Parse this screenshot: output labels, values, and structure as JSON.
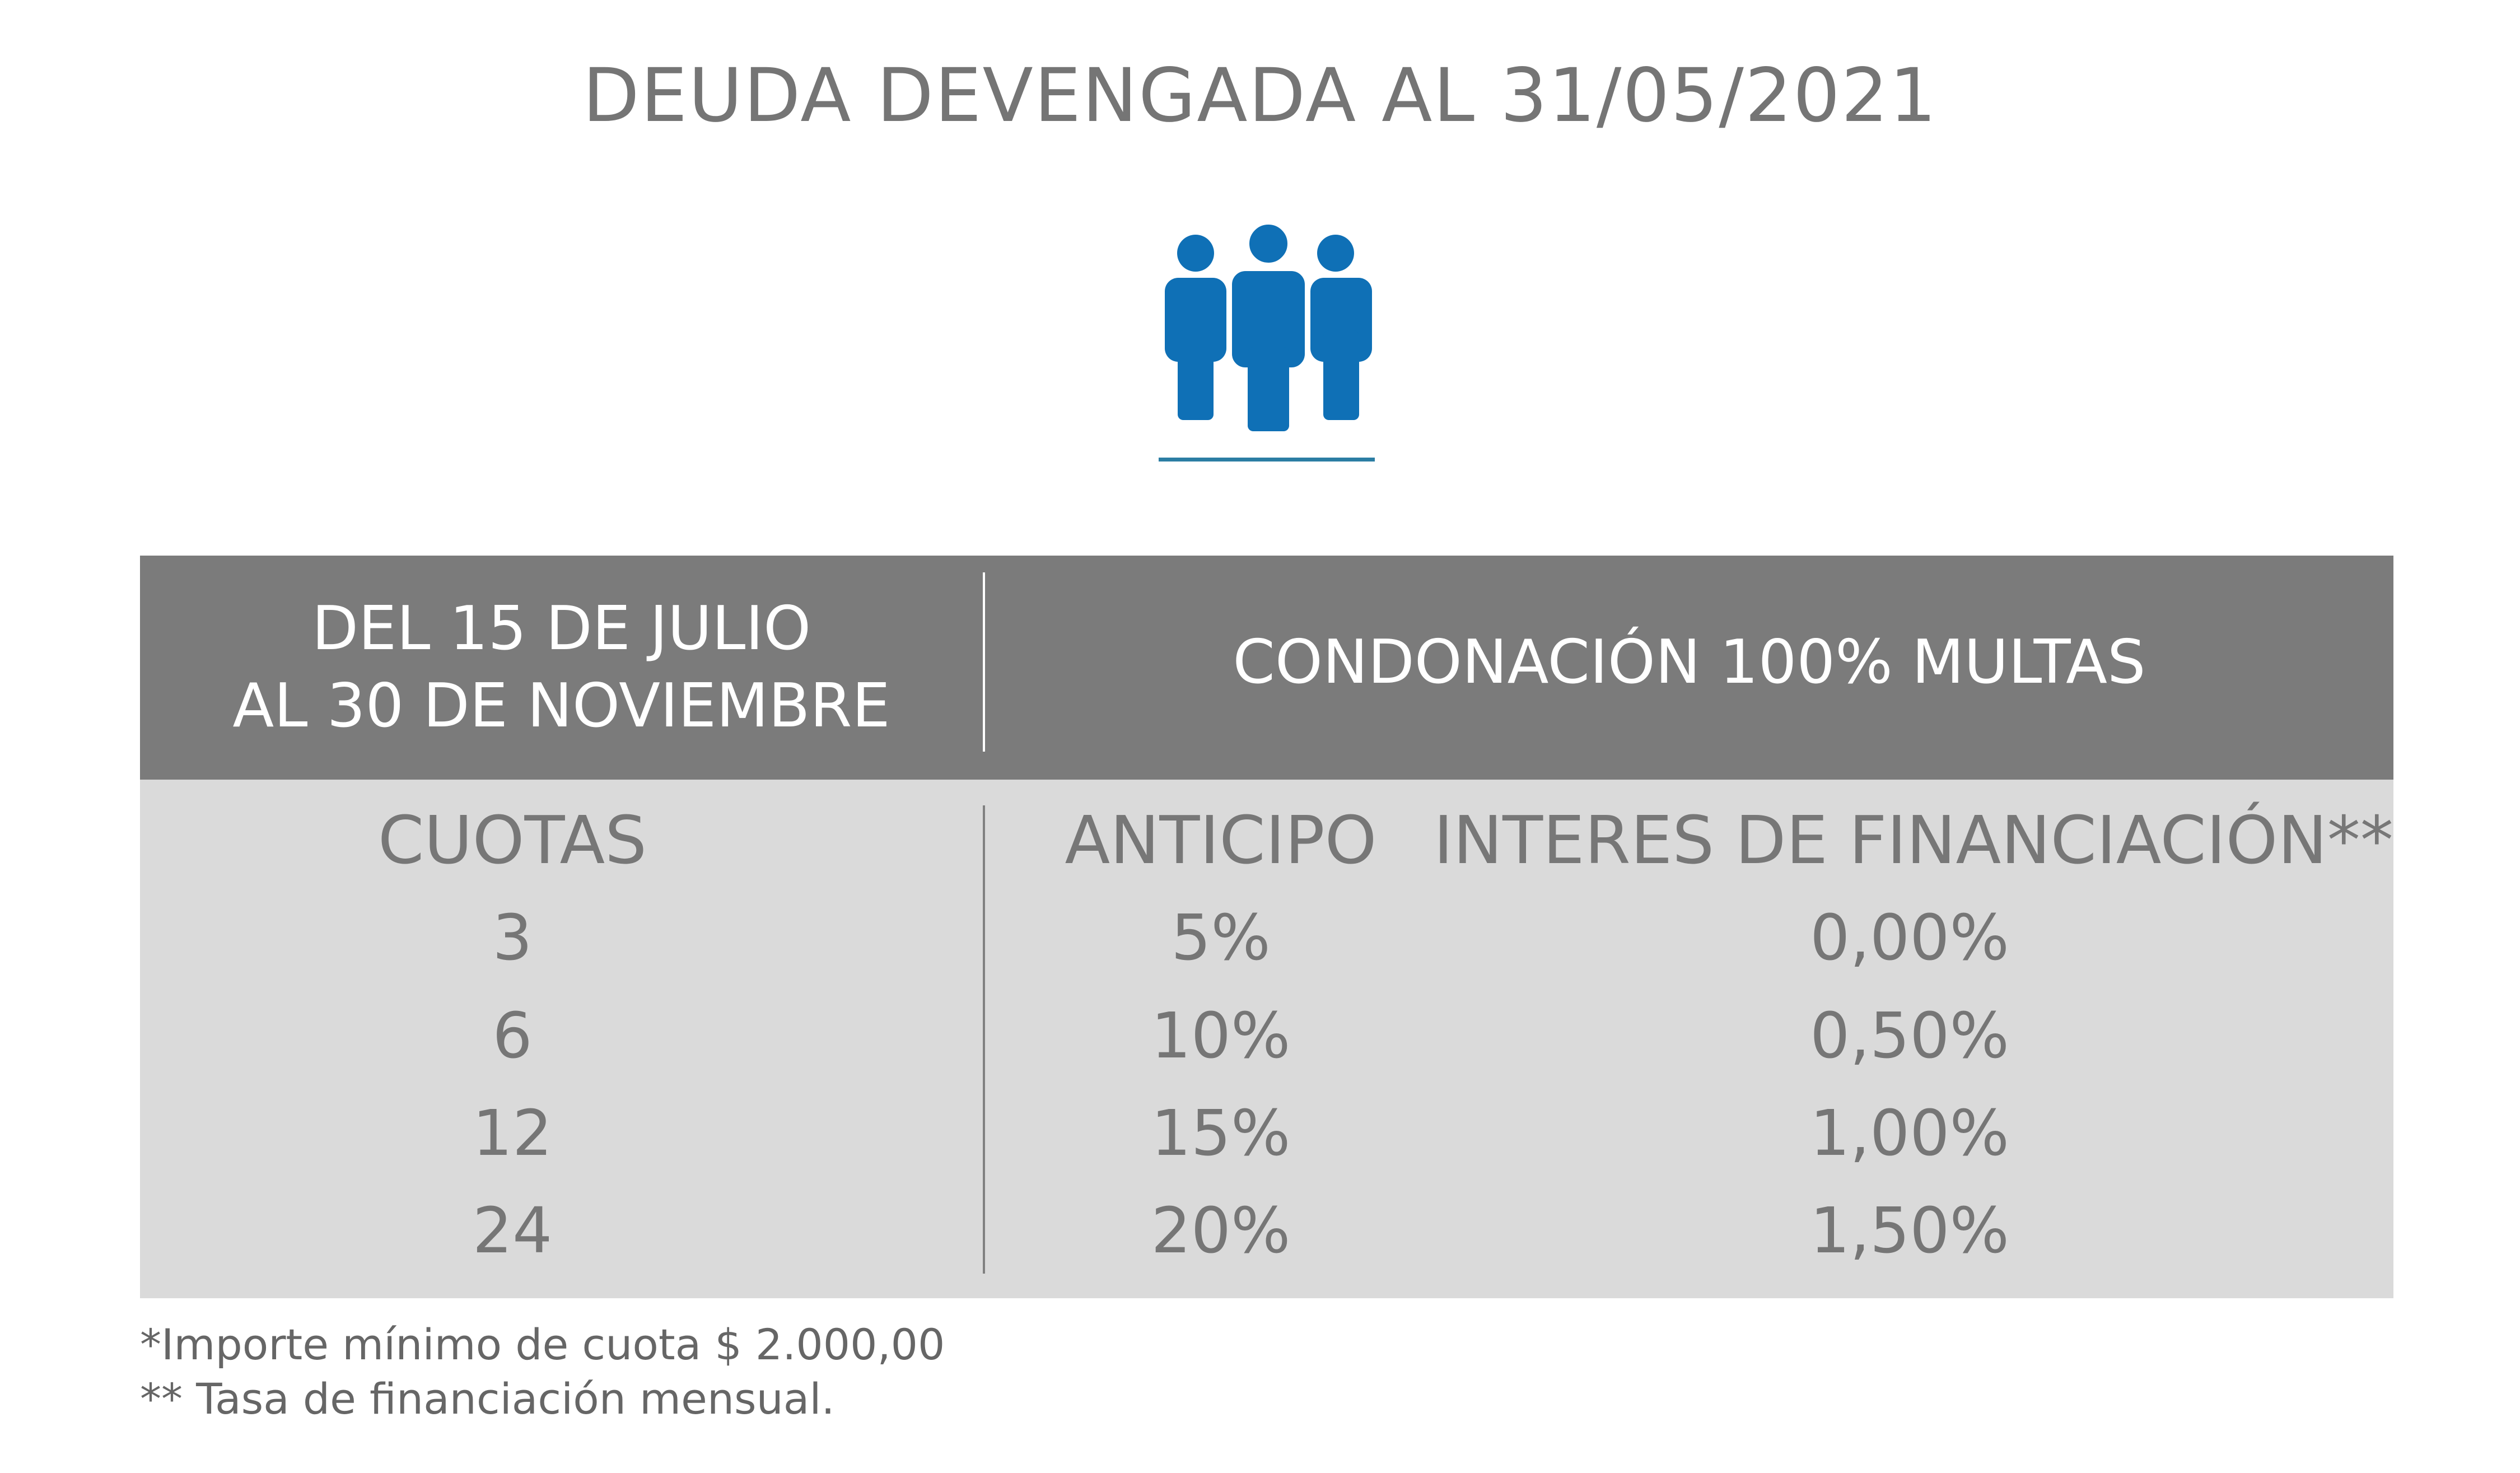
{
  "title": "DEUDA DEVENGADA AL 31/05/2021",
  "icon": "people-group-icon",
  "colors": {
    "icon": "#0f70b6",
    "underline": "#2b7da3",
    "header_bg": "#7b7b7b",
    "body_bg": "#dadada",
    "text": "#7a7a7a"
  },
  "header": {
    "period_line1": "DEL 15 DE JULIO",
    "period_line2": "AL 30 DE NOVIEMBRE",
    "benefit": "CONDONACIÓN 100% MULTAS"
  },
  "columns": {
    "cuotas": "CUOTAS",
    "anticipo": "ANTICIPO",
    "interes": "INTERES DE FINANCIACIÓN**"
  },
  "rows": [
    {
      "cuotas": "3",
      "anticipo": "5%",
      "interes": "0,00%"
    },
    {
      "cuotas": "6",
      "anticipo": "10%",
      "interes": "0,50%"
    },
    {
      "cuotas": "12",
      "anticipo": "15%",
      "interes": "1,00%"
    },
    {
      "cuotas": "24",
      "anticipo": "20%",
      "interes": "1,50%"
    }
  ],
  "footnotes": [
    "*Importe mínimo de cuota $ 2.000,00",
    "** Tasa de financiación mensual."
  ]
}
